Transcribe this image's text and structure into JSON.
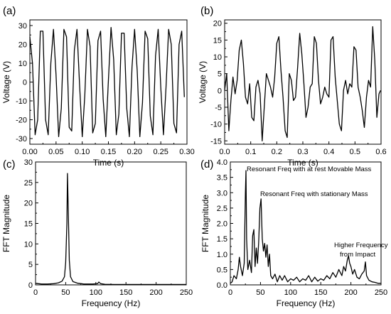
{
  "chart_data": [
    {
      "id": "a",
      "panel_label": "(a)",
      "type": "line",
      "xlabel": "Time (s)",
      "ylabel": "Voltage (V)",
      "xlim": [
        0,
        0.3
      ],
      "ylim": [
        -33,
        33
      ],
      "xticks": [
        "0.00",
        "0.05",
        "0.10",
        "0.15",
        "0.20",
        "0.25",
        "0.30"
      ],
      "yticks": [
        "-30",
        "-20",
        "-10",
        "0",
        "10",
        "20",
        "30"
      ],
      "xtick_values": [
        0,
        0.05,
        0.1,
        0.15,
        0.2,
        0.25,
        0.3
      ],
      "ytick_values": [
        -30,
        -20,
        -10,
        0,
        10,
        20,
        30
      ],
      "annotations": [],
      "series": [
        {
          "x": [
            0.0,
            0.005,
            0.01,
            0.015,
            0.02,
            0.025,
            0.03,
            0.035,
            0.04,
            0.045,
            0.05,
            0.055,
            0.06,
            0.065,
            0.07,
            0.075,
            0.08,
            0.085,
            0.09,
            0.095,
            0.1,
            0.105,
            0.11,
            0.115,
            0.12,
            0.125,
            0.13,
            0.135,
            0.14,
            0.145,
            0.15,
            0.155,
            0.16,
            0.165,
            0.17,
            0.175,
            0.18,
            0.185,
            0.19,
            0.195,
            0.2,
            0.205,
            0.21,
            0.215,
            0.22,
            0.225,
            0.23,
            0.235,
            0.24,
            0.245,
            0.25,
            0.255,
            0.26,
            0.265,
            0.27,
            0.275,
            0.28,
            0.285,
            0.29,
            0.295
          ],
          "y": [
            24,
            10,
            -28,
            -20,
            27,
            27,
            -20,
            -28,
            10,
            28,
            4,
            -29,
            -14,
            28,
            24,
            -24,
            -26,
            17,
            28,
            -2,
            -29,
            -7,
            28,
            19,
            -27,
            -22,
            22,
            27,
            -9,
            -29,
            1,
            29,
            12,
            -28,
            -17,
            26,
            26,
            -14,
            -29,
            8,
            28,
            6,
            -29,
            -11,
            27,
            23,
            -18,
            -28,
            14,
            28,
            -3,
            -28,
            -3,
            28,
            20,
            -22,
            -27,
            20,
            27,
            -8
          ]
        }
      ]
    },
    {
      "id": "b",
      "panel_label": "(b)",
      "type": "line",
      "xlabel": "Time (s)",
      "ylabel": "Voltage (V)",
      "xlim": [
        0,
        0.6
      ],
      "ylim": [
        -16,
        21
      ],
      "xticks": [
        "0.0",
        "0.1",
        "0.2",
        "0.3",
        "0.4",
        "0.5",
        "0.6"
      ],
      "yticks": [
        "-15",
        "-10",
        "-5",
        "0",
        "5",
        "10",
        "15",
        "20"
      ],
      "xtick_values": [
        0,
        0.1,
        0.2,
        0.3,
        0.4,
        0.5,
        0.6
      ],
      "ytick_values": [
        -15,
        -10,
        -5,
        0,
        5,
        10,
        15,
        20
      ],
      "annotations": [],
      "series": [
        {
          "x": [
            0.0,
            0.008,
            0.016,
            0.024,
            0.032,
            0.04,
            0.048,
            0.056,
            0.064,
            0.072,
            0.08,
            0.088,
            0.096,
            0.104,
            0.112,
            0.12,
            0.128,
            0.136,
            0.144,
            0.152,
            0.16,
            0.168,
            0.176,
            0.184,
            0.192,
            0.2,
            0.208,
            0.216,
            0.224,
            0.232,
            0.24,
            0.248,
            0.256,
            0.264,
            0.272,
            0.28,
            0.288,
            0.296,
            0.304,
            0.312,
            0.32,
            0.328,
            0.336,
            0.344,
            0.352,
            0.36,
            0.368,
            0.376,
            0.384,
            0.392,
            0.4,
            0.408,
            0.416,
            0.424,
            0.432,
            0.44,
            0.448,
            0.456,
            0.464,
            0.472,
            0.48,
            0.488,
            0.496,
            0.504,
            0.512,
            0.52,
            0.528,
            0.536,
            0.544,
            0.552,
            0.56,
            0.568,
            0.576,
            0.584,
            0.592,
            0.598
          ],
          "y": [
            0,
            5,
            -12,
            -3,
            4,
            -1,
            3,
            12,
            15,
            8,
            -2,
            -4,
            2,
            -8,
            -9,
            1,
            3,
            -1,
            -15,
            -5,
            5,
            3,
            1,
            -2,
            4,
            14,
            16,
            6,
            -2,
            -12,
            -14,
            5,
            3,
            -3,
            -2,
            7,
            17,
            11,
            2,
            -8,
            -5,
            1,
            2,
            16,
            14,
            3,
            -4,
            -2,
            1,
            -1,
            -2,
            15,
            16,
            4,
            -3,
            -10,
            -12,
            0,
            3,
            -1,
            2,
            1,
            13,
            12,
            1,
            -2,
            -6,
            -11,
            -2,
            3,
            1,
            19,
            9,
            -8,
            -1,
            0
          ]
        }
      ]
    },
    {
      "id": "c",
      "panel_label": "(c)",
      "type": "line",
      "xlabel": "Frequency (Hz)",
      "ylabel": "FFT Magnitude",
      "xlim": [
        0,
        250
      ],
      "ylim": [
        0,
        30
      ],
      "xticks": [
        "0",
        "50",
        "100",
        "150",
        "200",
        "250"
      ],
      "yticks": [
        "0",
        "5",
        "10",
        "15",
        "20",
        "25",
        "30"
      ],
      "xtick_values": [
        0,
        50,
        100,
        150,
        200,
        250
      ],
      "ytick_values": [
        0,
        5,
        10,
        15,
        20,
        25,
        30
      ],
      "annotations": [],
      "series": [
        {
          "x": [
            0,
            5,
            10,
            20,
            30,
            38,
            44,
            48,
            50,
            52,
            53,
            54,
            56,
            58,
            62,
            70,
            80,
            95,
            103,
            105,
            108,
            115,
            130,
            160,
            200,
            250
          ],
          "y": [
            0.4,
            0.3,
            0.2,
            0.2,
            0.3,
            0.5,
            0.9,
            2.0,
            5.5,
            15,
            27.2,
            20,
            6,
            2.0,
            0.8,
            0.4,
            0.2,
            0.2,
            0.3,
            0.7,
            0.3,
            0.15,
            0.1,
            0.1,
            0.1,
            0.1
          ]
        }
      ]
    },
    {
      "id": "d",
      "panel_label": "(d)",
      "type": "line",
      "xlabel": "Frequency (Hz)",
      "ylabel": "FFT Magnitude",
      "xlim": [
        0,
        250
      ],
      "ylim": [
        0,
        4.0
      ],
      "xticks": [
        "0",
        "50",
        "100",
        "150",
        "200",
        "250"
      ],
      "yticks": [
        "0.0",
        "0.5",
        "1.0",
        "1.5",
        "2.0",
        "2.5",
        "3.0",
        "3.5",
        "4.0"
      ],
      "xtick_values": [
        0,
        50,
        100,
        150,
        200,
        250
      ],
      "ytick_values": [
        0,
        0.5,
        1.0,
        1.5,
        2.0,
        2.5,
        3.0,
        3.5,
        4.0
      ],
      "annotations": [
        {
          "text": "Resonant Freq with at rest Movable Mass",
          "anchor_x": 26,
          "anchor_y": 3.72
        },
        {
          "text": "Resonant Freq with stationary Mass",
          "anchor_x": 50,
          "anchor_y": 2.88
        },
        {
          "text": "Higher Frequency",
          "anchor_x": 170,
          "anchor_y": 1.0
        },
        {
          "text": "from Impact",
          "anchor_x": 178,
          "anchor_y": 0.8
        }
      ],
      "series": [
        {
          "x": [
            0,
            3,
            6,
            10,
            13,
            15,
            17,
            20,
            23,
            25,
            26,
            27,
            29,
            32,
            35,
            37,
            39,
            41,
            43,
            45,
            47,
            49,
            51,
            53,
            55,
            57,
            59,
            61,
            63,
            65,
            67,
            70,
            74,
            78,
            82,
            86,
            90,
            95,
            100,
            105,
            110,
            115,
            120,
            125,
            130,
            135,
            140,
            145,
            150,
            155,
            160,
            165,
            170,
            175,
            180,
            185,
            188,
            191,
            194,
            196,
            198,
            200,
            203,
            206,
            210,
            214,
            218,
            222,
            224,
            226,
            230,
            235,
            240,
            245,
            250
          ],
          "y": [
            0.05,
            0.1,
            0.3,
            0.2,
            0.5,
            0.9,
            0.6,
            0.3,
            0.7,
            3.0,
            3.72,
            1.5,
            0.5,
            0.8,
            0.4,
            1.6,
            1.8,
            0.6,
            1.2,
            0.7,
            1.4,
            2.5,
            2.8,
            1.5,
            1.1,
            1.35,
            0.9,
            1.3,
            0.6,
            1.0,
            0.3,
            0.2,
            0.35,
            0.1,
            0.3,
            0.15,
            0.3,
            0.1,
            0.2,
            0.15,
            0.25,
            0.1,
            0.2,
            0.15,
            0.3,
            0.1,
            0.25,
            0.12,
            0.2,
            0.15,
            0.3,
            0.2,
            0.4,
            0.25,
            0.5,
            0.3,
            0.6,
            0.45,
            0.8,
            0.95,
            0.7,
            0.6,
            0.35,
            0.5,
            0.25,
            0.2,
            0.35,
            0.45,
            0.75,
            0.3,
            0.15,
            0.1,
            0.08,
            0.05,
            0.05
          ]
        }
      ]
    }
  ]
}
